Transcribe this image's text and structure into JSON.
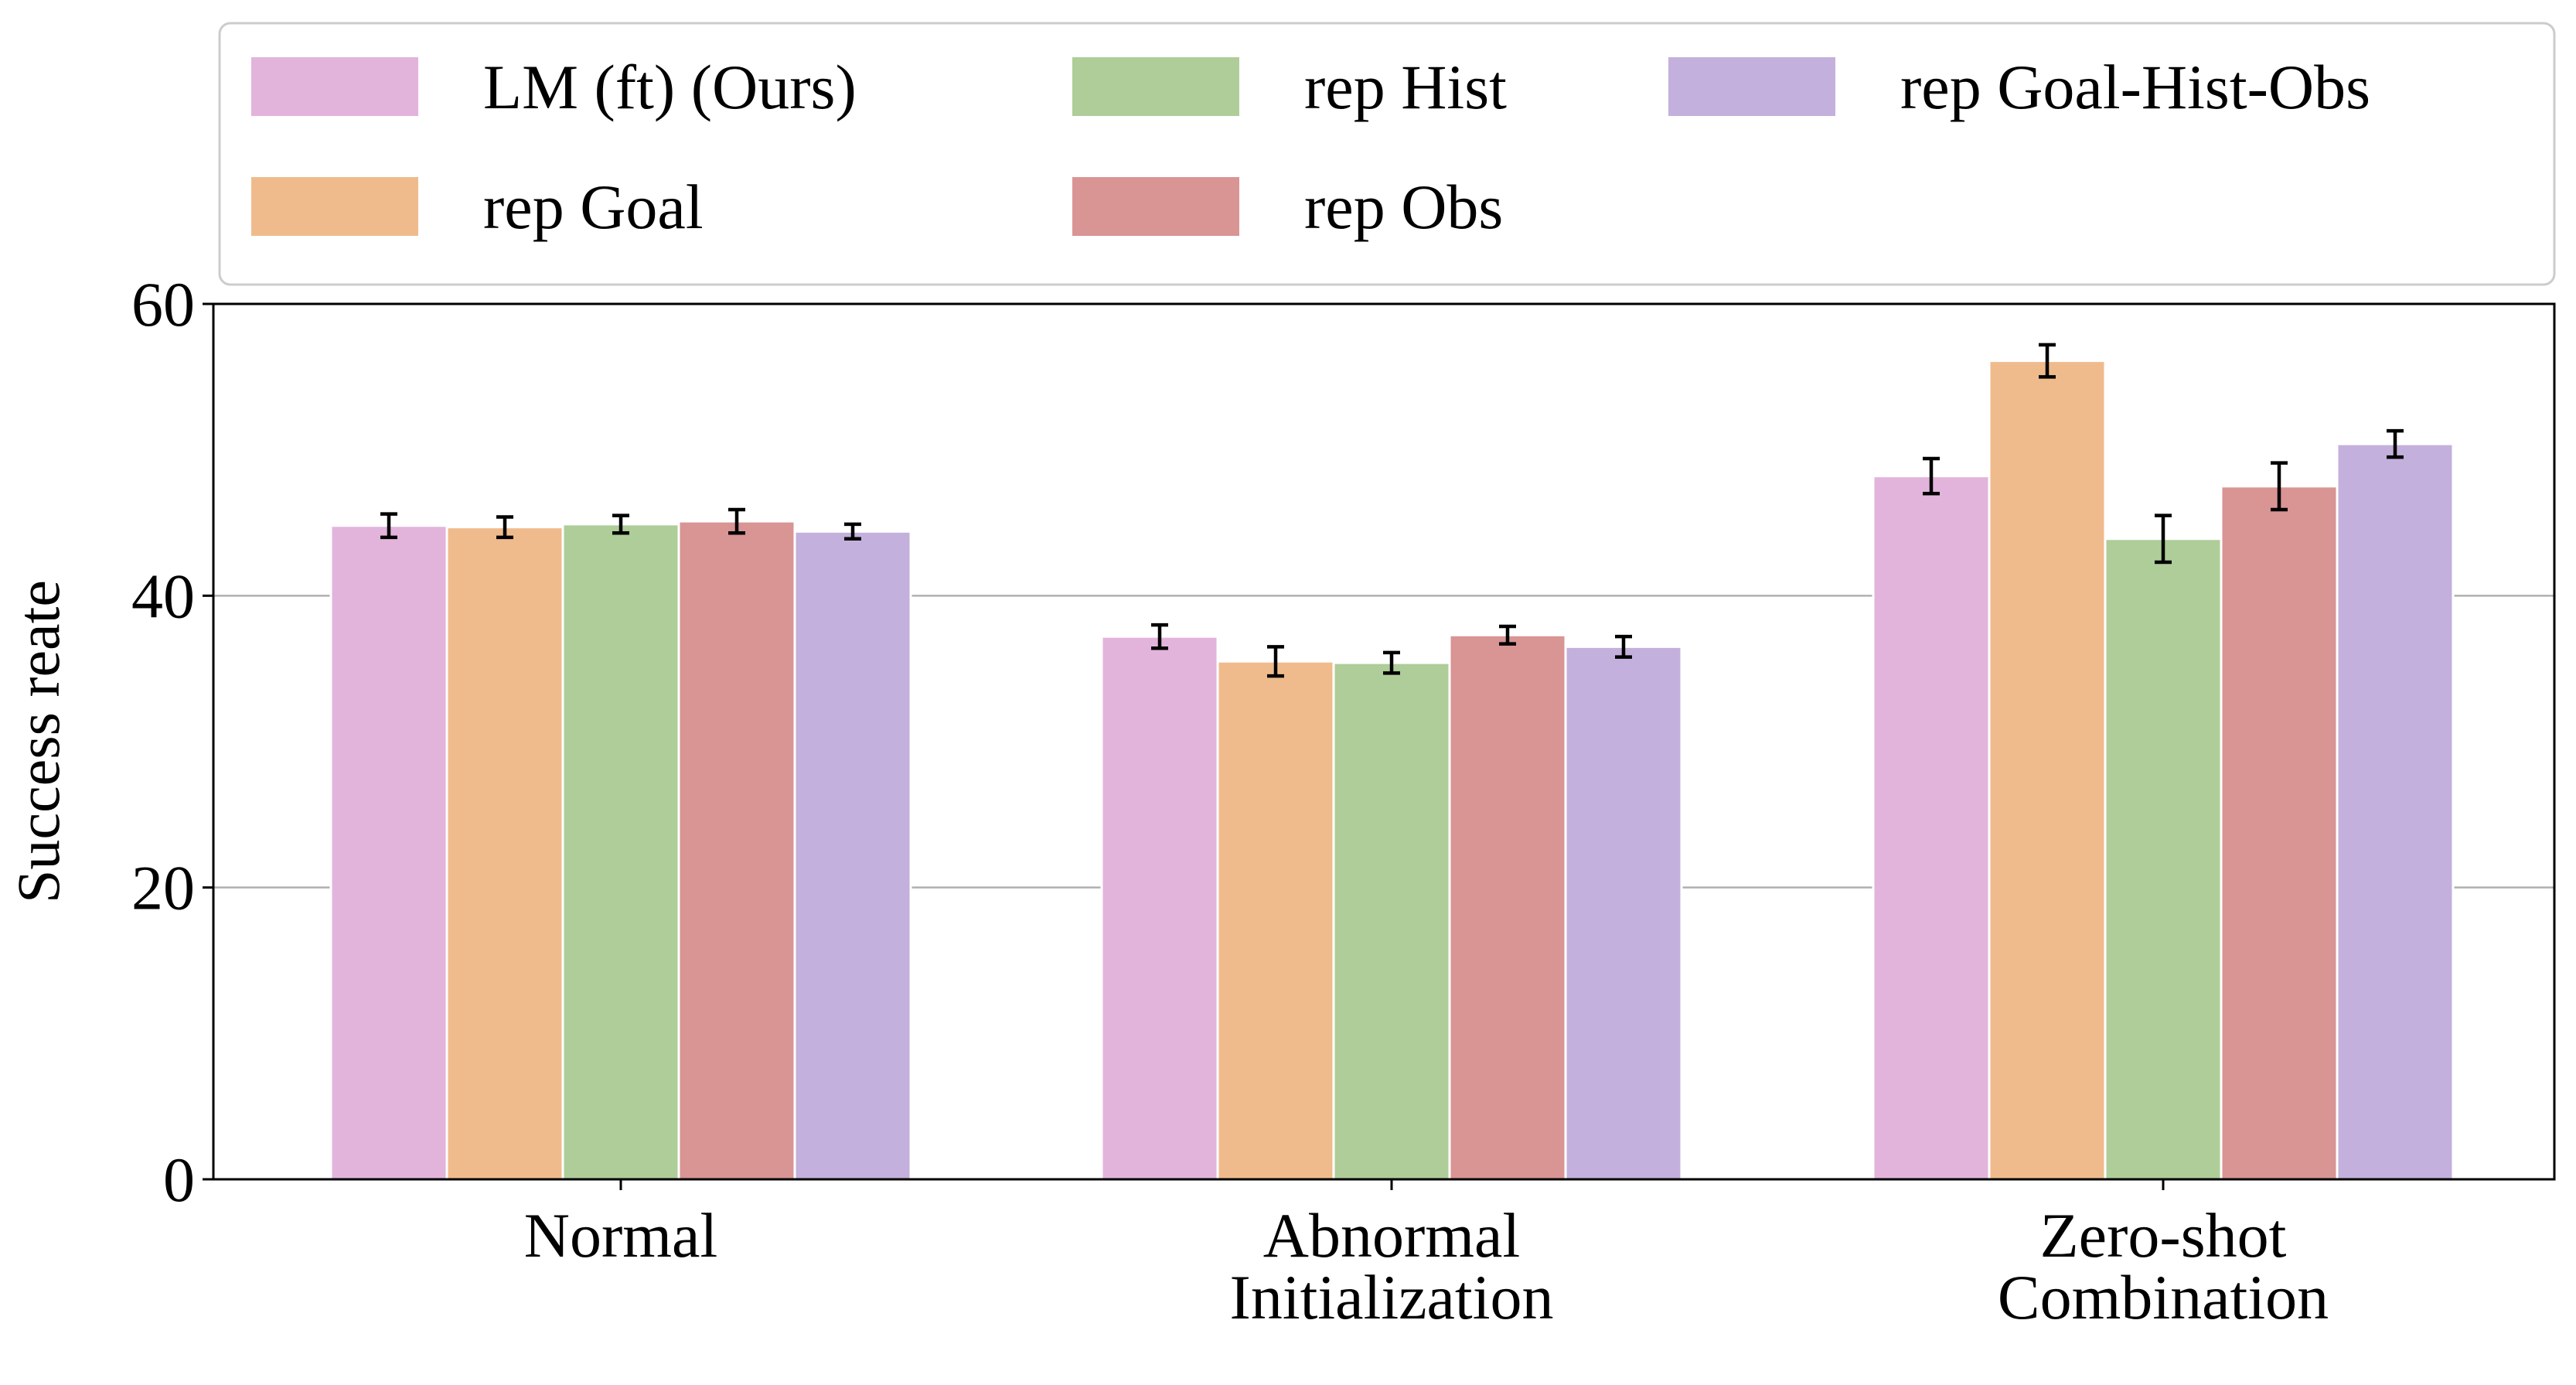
{
  "chart_data": {
    "type": "bar",
    "ylabel": "Success reate",
    "ylim": [
      0,
      60
    ],
    "yticks": [
      0,
      20,
      40,
      60
    ],
    "grid": "horizontal",
    "legend_position": "top",
    "categories": [
      [
        "Normal"
      ],
      [
        "Abnormal",
        "Initialization"
      ],
      [
        "Zero-shot",
        "Combination"
      ]
    ],
    "series": [
      {
        "name": "LM (ft) (Ours)",
        "color": "#e2b4dc",
        "values": [
          44.8,
          37.2,
          48.2
        ],
        "errors": [
          0.8,
          0.8,
          1.2
        ]
      },
      {
        "name": "rep Goal",
        "color": "#f0bb8c",
        "values": [
          44.7,
          35.5,
          56.1
        ],
        "errors": [
          0.7,
          1.0,
          1.1
        ]
      },
      {
        "name": "rep Hist",
        "color": "#aecd99",
        "values": [
          44.9,
          35.4,
          43.9
        ],
        "errors": [
          0.6,
          0.7,
          1.6
        ]
      },
      {
        "name": "rep Obs",
        "color": "#d99494",
        "values": [
          45.1,
          37.3,
          47.5
        ],
        "errors": [
          0.8,
          0.6,
          1.6
        ]
      },
      {
        "name": "rep Goal-Hist-Obs",
        "color": "#c4b0dc",
        "values": [
          44.4,
          36.5,
          50.4
        ],
        "errors": [
          0.5,
          0.7,
          0.9
        ]
      }
    ]
  }
}
